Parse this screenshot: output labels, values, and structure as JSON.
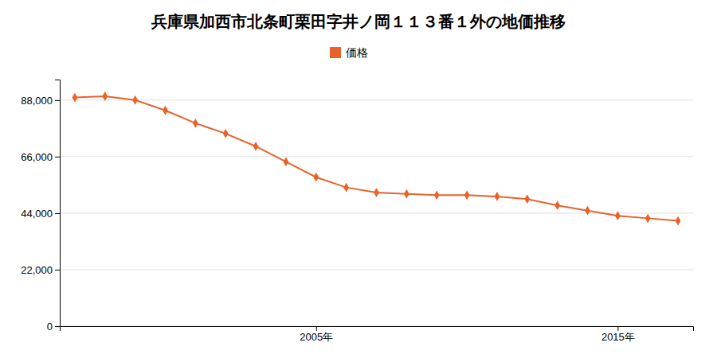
{
  "chart_data": {
    "type": "line",
    "title": "兵庫県加西市北条町栗田字井ノ岡１１３番１外の地価推移",
    "x": [
      1997,
      1998,
      1999,
      2000,
      2001,
      2002,
      2003,
      2004,
      2005,
      2006,
      2007,
      2008,
      2009,
      2010,
      2011,
      2012,
      2013,
      2014,
      2015,
      2016,
      2017
    ],
    "series": [
      {
        "name": "価格",
        "color": "#E8622A",
        "marker": "diamond",
        "values": [
          89000,
          89500,
          88000,
          84000,
          79000,
          75000,
          70000,
          64000,
          58000,
          54000,
          52000,
          51500,
          51000,
          51000,
          50500,
          49500,
          47000,
          45000,
          43000,
          42000,
          41000
        ]
      }
    ],
    "xlim": [
      1996.5,
      2017.5
    ],
    "xticks": [
      {
        "value": 2005,
        "label": "2005年"
      },
      {
        "value": 2015,
        "label": "2015年"
      }
    ],
    "ylim": [
      0,
      96000
    ],
    "yticks": [
      0,
      {
        "value": 22000,
        "label": "22,000"
      },
      {
        "value": 44000,
        "label": "44,000"
      },
      {
        "value": 66000,
        "label": "66,000"
      },
      {
        "value": 88000,
        "label": "88,000"
      }
    ],
    "grid": true,
    "legend": "top"
  }
}
